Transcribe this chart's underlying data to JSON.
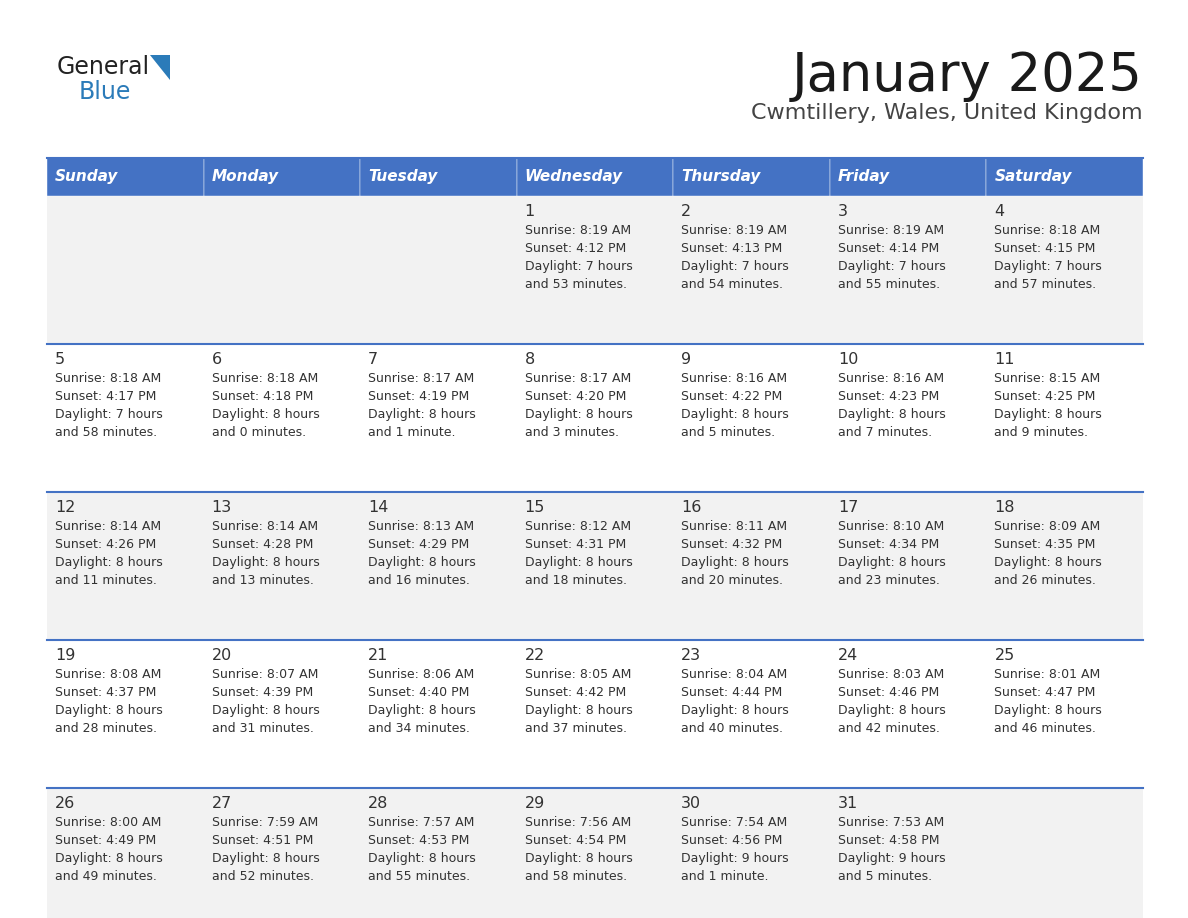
{
  "title": "January 2025",
  "subtitle": "Cwmtillery, Wales, United Kingdom",
  "days_of_week": [
    "Sunday",
    "Monday",
    "Tuesday",
    "Wednesday",
    "Thursday",
    "Friday",
    "Saturday"
  ],
  "header_bg": "#4472C4",
  "header_text": "#FFFFFF",
  "row_bg_light": "#F2F2F2",
  "row_bg_white": "#FFFFFF",
  "divider_color": "#4472C4",
  "text_color": "#333333",
  "logo_general_color": "#222222",
  "logo_blue_color": "#2B7BB9",
  "logo_triangle_color": "#2B7BB9",
  "title_color": "#1a1a1a",
  "subtitle_color": "#444444",
  "calendar_data": [
    [
      {
        "day": "",
        "info": ""
      },
      {
        "day": "",
        "info": ""
      },
      {
        "day": "",
        "info": ""
      },
      {
        "day": "1",
        "info": "Sunrise: 8:19 AM\nSunset: 4:12 PM\nDaylight: 7 hours\nand 53 minutes."
      },
      {
        "day": "2",
        "info": "Sunrise: 8:19 AM\nSunset: 4:13 PM\nDaylight: 7 hours\nand 54 minutes."
      },
      {
        "day": "3",
        "info": "Sunrise: 8:19 AM\nSunset: 4:14 PM\nDaylight: 7 hours\nand 55 minutes."
      },
      {
        "day": "4",
        "info": "Sunrise: 8:18 AM\nSunset: 4:15 PM\nDaylight: 7 hours\nand 57 minutes."
      }
    ],
    [
      {
        "day": "5",
        "info": "Sunrise: 8:18 AM\nSunset: 4:17 PM\nDaylight: 7 hours\nand 58 minutes."
      },
      {
        "day": "6",
        "info": "Sunrise: 8:18 AM\nSunset: 4:18 PM\nDaylight: 8 hours\nand 0 minutes."
      },
      {
        "day": "7",
        "info": "Sunrise: 8:17 AM\nSunset: 4:19 PM\nDaylight: 8 hours\nand 1 minute."
      },
      {
        "day": "8",
        "info": "Sunrise: 8:17 AM\nSunset: 4:20 PM\nDaylight: 8 hours\nand 3 minutes."
      },
      {
        "day": "9",
        "info": "Sunrise: 8:16 AM\nSunset: 4:22 PM\nDaylight: 8 hours\nand 5 minutes."
      },
      {
        "day": "10",
        "info": "Sunrise: 8:16 AM\nSunset: 4:23 PM\nDaylight: 8 hours\nand 7 minutes."
      },
      {
        "day": "11",
        "info": "Sunrise: 8:15 AM\nSunset: 4:25 PM\nDaylight: 8 hours\nand 9 minutes."
      }
    ],
    [
      {
        "day": "12",
        "info": "Sunrise: 8:14 AM\nSunset: 4:26 PM\nDaylight: 8 hours\nand 11 minutes."
      },
      {
        "day": "13",
        "info": "Sunrise: 8:14 AM\nSunset: 4:28 PM\nDaylight: 8 hours\nand 13 minutes."
      },
      {
        "day": "14",
        "info": "Sunrise: 8:13 AM\nSunset: 4:29 PM\nDaylight: 8 hours\nand 16 minutes."
      },
      {
        "day": "15",
        "info": "Sunrise: 8:12 AM\nSunset: 4:31 PM\nDaylight: 8 hours\nand 18 minutes."
      },
      {
        "day": "16",
        "info": "Sunrise: 8:11 AM\nSunset: 4:32 PM\nDaylight: 8 hours\nand 20 minutes."
      },
      {
        "day": "17",
        "info": "Sunrise: 8:10 AM\nSunset: 4:34 PM\nDaylight: 8 hours\nand 23 minutes."
      },
      {
        "day": "18",
        "info": "Sunrise: 8:09 AM\nSunset: 4:35 PM\nDaylight: 8 hours\nand 26 minutes."
      }
    ],
    [
      {
        "day": "19",
        "info": "Sunrise: 8:08 AM\nSunset: 4:37 PM\nDaylight: 8 hours\nand 28 minutes."
      },
      {
        "day": "20",
        "info": "Sunrise: 8:07 AM\nSunset: 4:39 PM\nDaylight: 8 hours\nand 31 minutes."
      },
      {
        "day": "21",
        "info": "Sunrise: 8:06 AM\nSunset: 4:40 PM\nDaylight: 8 hours\nand 34 minutes."
      },
      {
        "day": "22",
        "info": "Sunrise: 8:05 AM\nSunset: 4:42 PM\nDaylight: 8 hours\nand 37 minutes."
      },
      {
        "day": "23",
        "info": "Sunrise: 8:04 AM\nSunset: 4:44 PM\nDaylight: 8 hours\nand 40 minutes."
      },
      {
        "day": "24",
        "info": "Sunrise: 8:03 AM\nSunset: 4:46 PM\nDaylight: 8 hours\nand 42 minutes."
      },
      {
        "day": "25",
        "info": "Sunrise: 8:01 AM\nSunset: 4:47 PM\nDaylight: 8 hours\nand 46 minutes."
      }
    ],
    [
      {
        "day": "26",
        "info": "Sunrise: 8:00 AM\nSunset: 4:49 PM\nDaylight: 8 hours\nand 49 minutes."
      },
      {
        "day": "27",
        "info": "Sunrise: 7:59 AM\nSunset: 4:51 PM\nDaylight: 8 hours\nand 52 minutes."
      },
      {
        "day": "28",
        "info": "Sunrise: 7:57 AM\nSunset: 4:53 PM\nDaylight: 8 hours\nand 55 minutes."
      },
      {
        "day": "29",
        "info": "Sunrise: 7:56 AM\nSunset: 4:54 PM\nDaylight: 8 hours\nand 58 minutes."
      },
      {
        "day": "30",
        "info": "Sunrise: 7:54 AM\nSunset: 4:56 PM\nDaylight: 9 hours\nand 1 minute."
      },
      {
        "day": "31",
        "info": "Sunrise: 7:53 AM\nSunset: 4:58 PM\nDaylight: 9 hours\nand 5 minutes."
      },
      {
        "day": "",
        "info": ""
      }
    ]
  ]
}
